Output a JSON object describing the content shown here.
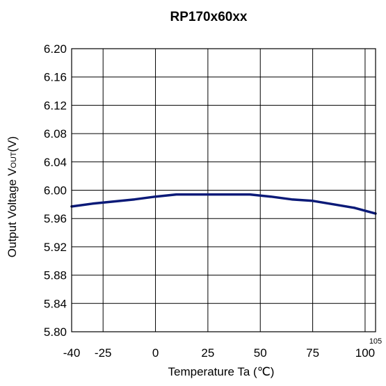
{
  "chart_data": {
    "type": "line",
    "title": "RP170x60xx",
    "xlabel": "Temperature Ta (℃)",
    "ylabel_main": "Output Voltage  V",
    "ylabel_sub": "OUT",
    "ylabel_unit": "(V)",
    "xlim": [
      -40,
      105
    ],
    "ylim": [
      5.8,
      6.2
    ],
    "xticks": [
      {
        "value": -40,
        "label": "-40"
      },
      {
        "value": -25,
        "label": "-25"
      },
      {
        "value": 0,
        "label": "0"
      },
      {
        "value": 25,
        "label": "25"
      },
      {
        "value": 50,
        "label": "50"
      },
      {
        "value": 75,
        "label": "75"
      },
      {
        "value": 100,
        "label": "100"
      }
    ],
    "xgrid": [
      -25,
      0,
      25,
      50,
      75,
      100
    ],
    "xmax_label": "105",
    "yticks": [
      {
        "value": 5.8,
        "label": "5.80"
      },
      {
        "value": 5.84,
        "label": "5.84"
      },
      {
        "value": 5.88,
        "label": "5.88"
      },
      {
        "value": 5.92,
        "label": "5.92"
      },
      {
        "value": 5.96,
        "label": "5.96"
      },
      {
        "value": 6.0,
        "label": "6.00"
      },
      {
        "value": 6.04,
        "label": "6.04"
      },
      {
        "value": 6.08,
        "label": "6.08"
      },
      {
        "value": 6.12,
        "label": "6.12"
      },
      {
        "value": 6.16,
        "label": "6.16"
      },
      {
        "value": 6.2,
        "label": "6.20"
      }
    ],
    "grid": true,
    "series": [
      {
        "color": "#0b1a78",
        "x": [
          -40,
          -30,
          -20,
          -10,
          0,
          10,
          20,
          30,
          40,
          45,
          55,
          65,
          75,
          85,
          95,
          105
        ],
        "y": [
          5.977,
          5.981,
          5.984,
          5.987,
          5.991,
          5.994,
          5.994,
          5.994,
          5.994,
          5.994,
          5.991,
          5.987,
          5.985,
          5.98,
          5.975,
          5.967
        ]
      }
    ]
  }
}
